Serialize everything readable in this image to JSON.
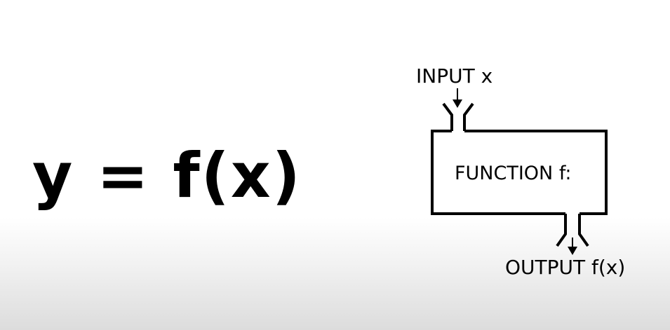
{
  "equation": {
    "text": "y = f(x)"
  },
  "diagram": {
    "input_label": "INPUT x",
    "function_label": "FUNCTION f:",
    "output_label": "OUTPUT f(x)"
  },
  "colors": {
    "stroke": "#000000",
    "background": "#ffffff",
    "footer_gradient": "#dcdcdc"
  }
}
